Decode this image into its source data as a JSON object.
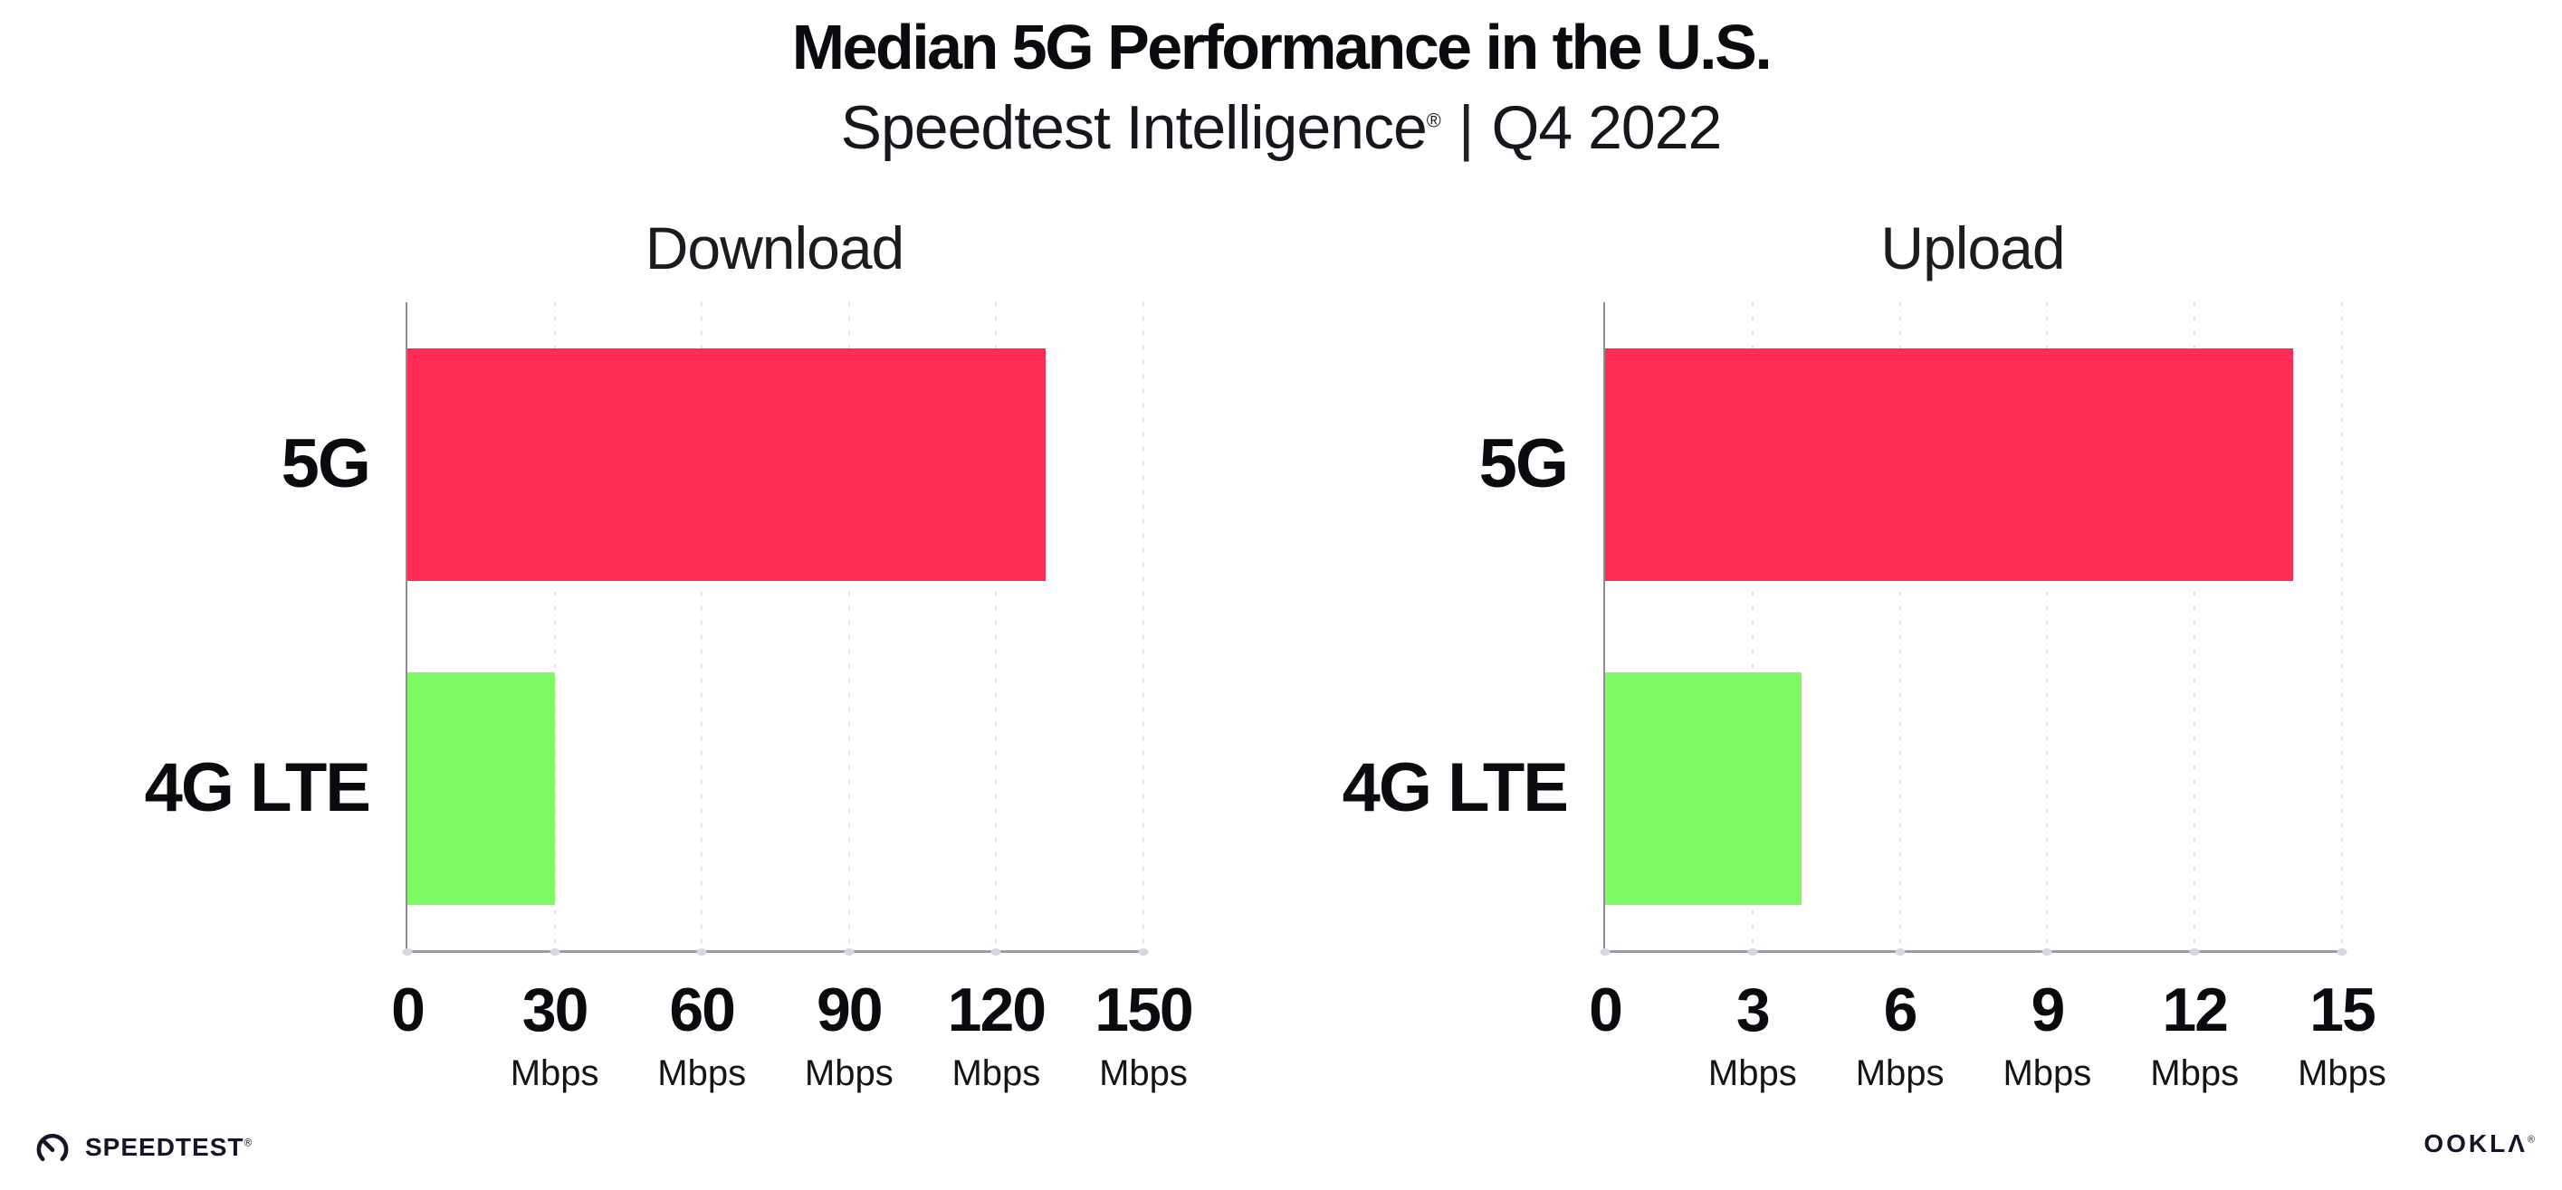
{
  "header": {
    "title": "Median 5G Performance in the U.S.",
    "subtitle_brand": "Speedtest Intelligence",
    "subtitle_registered": "®",
    "subtitle_separator": "|",
    "subtitle_period": "Q4 2022"
  },
  "chart_data": [
    {
      "type": "bar",
      "orientation": "horizontal",
      "title": "Download",
      "categories": [
        "5G",
        "4G LTE"
      ],
      "values": [
        130,
        30
      ],
      "unit": "Mbps",
      "xlim": [
        0,
        150
      ],
      "xticks": [
        0,
        30,
        60,
        90,
        120,
        150
      ],
      "bar_colors": [
        "#FF2D55",
        "#7EFB64"
      ],
      "grid": "dotted vertical major gridlines",
      "legend": "none",
      "data_labels": "none"
    },
    {
      "type": "bar",
      "orientation": "horizontal",
      "title": "Upload",
      "categories": [
        "5G",
        "4G LTE"
      ],
      "values": [
        14,
        4
      ],
      "unit": "Mbps",
      "xlim": [
        0,
        15
      ],
      "xticks": [
        0,
        3,
        6,
        9,
        12,
        15
      ],
      "bar_colors": [
        "#FF2D55",
        "#7EFB64"
      ],
      "grid": "dotted vertical major gridlines",
      "legend": "none",
      "data_labels": "none"
    }
  ],
  "footer": {
    "speedtest_label": "SPEEDTEST",
    "speedtest_mark": "®",
    "ookla_label": "OOKLΛ",
    "ookla_mark": "®"
  },
  "colors": {
    "bar_5g": "#FF2D55",
    "bar_4g_lte": "#7EFB64",
    "axis": "#9b9ba3",
    "gridline": "#e0e1ec",
    "text": "#0b0b0f"
  }
}
